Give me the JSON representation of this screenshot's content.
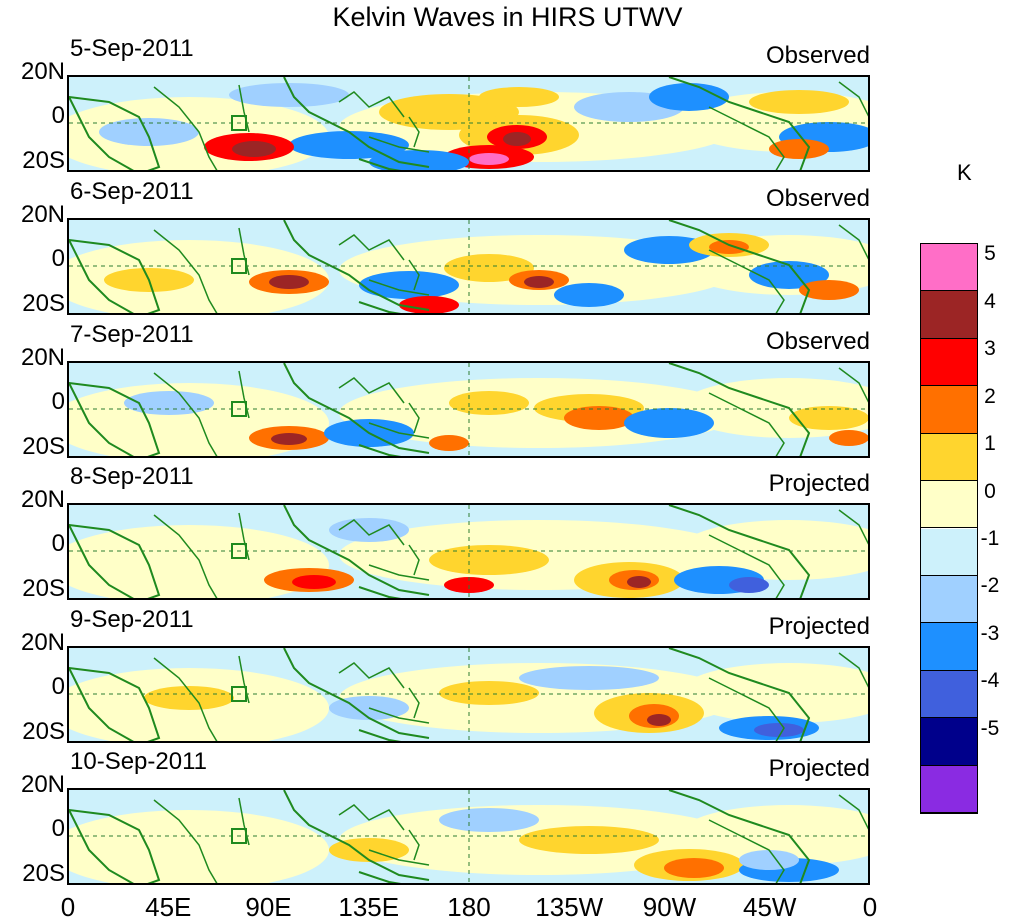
{
  "title": "Kelvin Waves in HIRS UTWV",
  "panels": [
    {
      "date": "5-Sep-2011",
      "status": "Observed"
    },
    {
      "date": "6-Sep-2011",
      "status": "Observed"
    },
    {
      "date": "7-Sep-2011",
      "status": "Observed"
    },
    {
      "date": "8-Sep-2011",
      "status": "Projected"
    },
    {
      "date": "9-Sep-2011",
      "status": "Projected"
    },
    {
      "date": "10-Sep-2011",
      "status": "Projected"
    }
  ],
  "y_axis": {
    "top": "20N",
    "mid": "0",
    "bottom": "20S"
  },
  "x_axis": [
    "0",
    "45E",
    "90E",
    "135E",
    "180",
    "135W",
    "90W",
    "45W",
    "0"
  ],
  "colorbar": {
    "unit": "K",
    "labels": [
      "5",
      "4",
      "3",
      "2",
      "1",
      "0",
      "-1",
      "-2",
      "-3",
      "-4",
      "-5"
    ],
    "colors": [
      "#ff6ec7",
      "#9c2525",
      "#ff0000",
      "#ff7000",
      "#ffd52e",
      "#ffffc8",
      "#cdf1fb",
      "#a0d0ff",
      "#1e90ff",
      "#4060dd",
      "#00008b",
      "#8a2be2"
    ]
  },
  "legend_colors": {
    "land": "#1f8a1f",
    "equator": "#2e7d32"
  }
}
